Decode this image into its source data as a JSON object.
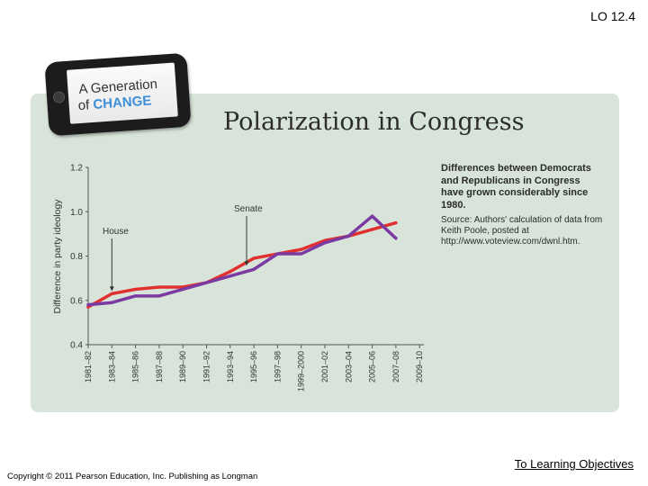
{
  "slide_label": "LO 12.4",
  "badge": {
    "line1": "A Generation",
    "line2_prefix": "of ",
    "line2_accent": "CHANGE"
  },
  "caption": {
    "main": "Differences between Democrats and Republicans in Congress have grown considerably since 1980.",
    "source": "Source: Authors' calculation of data from Keith Poole, posted at http://www.voteview.com/dwnl.htm."
  },
  "footer": {
    "copyright": "Copyright © 2011 Pearson Education, Inc. Publishing as Longman",
    "link": "To Learning Objectives"
  },
  "colors": {
    "house": "#e0312f",
    "senate": "#7b3aa2",
    "panel": "#d8e4d9",
    "accent": "#3d8fd8"
  },
  "chart_data": {
    "type": "line",
    "title": "Polarization in Congress",
    "xlabel": "",
    "ylabel": "Difference in party ideology",
    "ylim": [
      0.4,
      1.2
    ],
    "yticks": [
      "0.4",
      "0.6",
      "0.8",
      "1.0",
      "1.2"
    ],
    "ytick_values": [
      0.4,
      0.6,
      0.8,
      1.0,
      1.2
    ],
    "categories": [
      "1981–82",
      "1983–84",
      "1985–86",
      "1987–88",
      "1989–90",
      "1991–92",
      "1993–94",
      "1995–96",
      "1997–98",
      "1999–2000",
      "2001–02",
      "2003–04",
      "2005–06",
      "2007–08",
      "2009–10"
    ],
    "series": [
      {
        "name": "House",
        "values": [
          0.57,
          0.63,
          0.65,
          0.66,
          0.66,
          0.68,
          0.73,
          0.79,
          0.81,
          0.83,
          0.87,
          0.89,
          0.92,
          0.95,
          null
        ]
      },
      {
        "name": "Senate",
        "values": [
          0.58,
          0.59,
          0.62,
          0.62,
          0.65,
          0.68,
          0.71,
          0.74,
          0.81,
          0.81,
          0.86,
          0.89,
          0.98,
          0.88,
          null
        ]
      }
    ],
    "annotations": [
      "House",
      "Senate"
    ]
  }
}
